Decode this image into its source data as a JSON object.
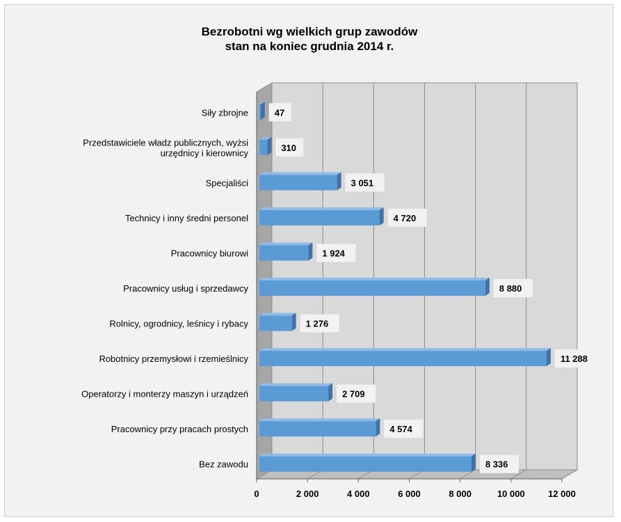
{
  "chart_data": {
    "type": "bar",
    "orientation": "horizontal",
    "title": "Bezrobotni wg wielkich grup zawodów",
    "subtitle": "stan na koniec grudnia 2014 r.",
    "categories": [
      "Siły zbrojne",
      "Przedstawiciele władz publicznych, wyżsi|urzędnicy i kierownicy",
      "Specjaliści",
      "Technicy i inny średni personel",
      "Pracownicy biurowi",
      "Pracownicy usług i sprzedawcy",
      "Rolnicy, ogrodnicy, leśnicy i rybacy",
      "Robotnicy przemysłowi i rzemieślnicy",
      "Operatorzy i monterzy maszyn i urządzeń",
      "Pracownicy przy pracach prostych",
      "Bez zawodu"
    ],
    "values": [
      47,
      310,
      3051,
      4720,
      1924,
      8880,
      1276,
      11288,
      2709,
      4574,
      8336
    ],
    "value_labels": [
      "47",
      "310",
      "3 051",
      "4 720",
      "1 924",
      "8 880",
      "1 276",
      "11 288",
      "2 709",
      "4 574",
      "8 336"
    ],
    "xlim": [
      0,
      12000
    ],
    "ticks": [
      0,
      2000,
      4000,
      6000,
      8000,
      10000,
      12000
    ],
    "tick_labels": [
      "0",
      "2 000",
      "4 000",
      "6 000",
      "8 000",
      "10 000",
      "12 000"
    ],
    "grid": true,
    "legend": "none",
    "colors": {
      "bar_front": "#5b9bd5",
      "bar_top": "#8fbbe6",
      "bar_side": "#3a73ad",
      "wall": "#d9d9d9",
      "floor": "#bfbfbf",
      "grid": "#8c8c8c",
      "background": "#f2f2f2"
    }
  }
}
